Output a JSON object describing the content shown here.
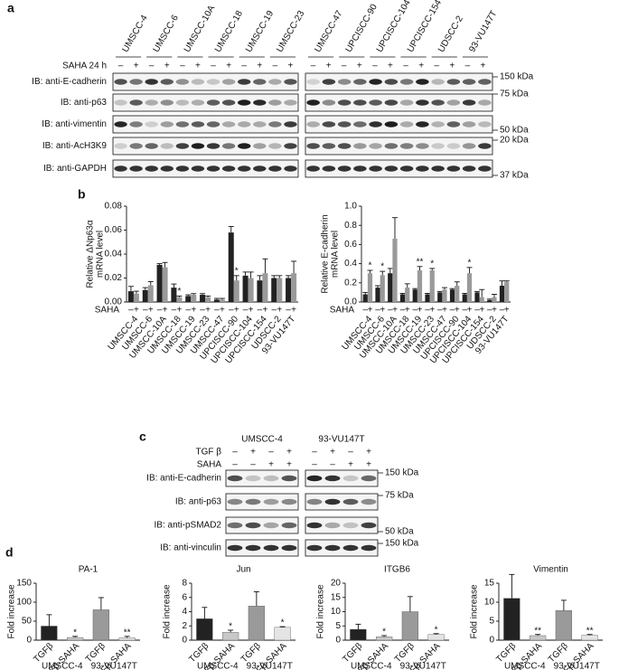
{
  "panel_labels": [
    "a",
    "b",
    "c",
    "d"
  ],
  "blot_a": {
    "treatment": "SAHA 24 h",
    "signs": [
      "–",
      "+"
    ],
    "cell_lines": [
      "UMSCC-4",
      "UMSCC-6",
      "UMSCC-10A",
      "UMSCC-18",
      "UMSCC-19",
      "UMSCC-23",
      "UMSCC-47",
      "UPCISCC-90",
      "UPCISCC-104",
      "UPCISCC-154",
      "UDSCC-2",
      "93-VU147T"
    ],
    "rows": [
      {
        "label": "IB: anti-E-cadherin",
        "marker": "150 kDa"
      },
      {
        "label": "IB: anti-p63",
        "marker": "75 kDa"
      },
      {
        "label": "IB: anti-vimentin",
        "marker": "50 kDa"
      },
      {
        "label": "IB: anti-AcH3K9",
        "marker": "20 kDa"
      },
      {
        "label": "IB: anti-GAPDH",
        "marker": "37 kDa"
      }
    ]
  },
  "blot_c": {
    "groups": [
      "UMSCC-4",
      "93-VU147T"
    ],
    "treatments": [
      {
        "name": "TGF β",
        "signs": [
          "–",
          "+",
          "–",
          "+"
        ]
      },
      {
        "name": "SAHA",
        "signs": [
          "–",
          "–",
          "+",
          "+"
        ]
      }
    ],
    "rows": [
      {
        "label": "IB: anti-E-cadherin",
        "marker": "150 kDa"
      },
      {
        "label": "IB: anti-p63",
        "marker": "75 kDa"
      },
      {
        "label": "IB: anti-pSMAD2",
        "marker": "50 kDa"
      },
      {
        "label": "IB: anti-vinculin",
        "marker": "150 kDa"
      }
    ]
  },
  "chart_data": [
    {
      "type": "grouped-bar",
      "ylabel": [
        "Relative ΔNp63α",
        "mRNA level"
      ],
      "treatment_label": "SAHA",
      "categories": [
        "UMSCC-4",
        "UMSCC-6",
        "UMSCC-10A",
        "UMSCC-18",
        "UMSCC-19",
        "UMSCC-23",
        "UMSCC-47",
        "UPCISCC-90",
        "UPCISCC-104",
        "UPCISCC-154",
        "UDSCC-2",
        "93-VU147T"
      ],
      "ylim": [
        0,
        0.08
      ],
      "yticks": [
        {
          "value": 0,
          "label": "0.00"
        },
        {
          "value": 0.02,
          "label": "0.02"
        },
        {
          "value": 0.04,
          "label": "0.04"
        },
        {
          "value": 0.06,
          "label": "0.06"
        },
        {
          "value": 0.08,
          "label": "0.08"
        }
      ],
      "series": [
        {
          "name": "–",
          "color": "#222222",
          "values": [
            0.009,
            0.01,
            0.031,
            0.012,
            0.005,
            0.006,
            0.002,
            0.058,
            0.022,
            0.018,
            0.02,
            0.02
          ],
          "errors": [
            0.004,
            0.002,
            0.001,
            0.003,
            0.001,
            0.001,
            0.001,
            0.005,
            0.003,
            0.004,
            0.002,
            0.002
          ]
        },
        {
          "name": "+",
          "color": "#9a9a9a",
          "values": [
            0.007,
            0.014,
            0.029,
            0.004,
            0.006,
            0.004,
            0.002,
            0.018,
            0.02,
            0.024,
            0.02,
            0.024
          ],
          "errors": [
            0.002,
            0.003,
            0.004,
            0.001,
            0.001,
            0.001,
            0.001,
            0.004,
            0.005,
            0.012,
            0.002,
            0.01
          ],
          "significance": [
            null,
            null,
            null,
            "*",
            null,
            null,
            null,
            "*",
            null,
            null,
            null,
            null
          ]
        }
      ]
    },
    {
      "type": "grouped-bar",
      "ylabel": [
        "Relative E-cadherin",
        "mRNA level"
      ],
      "treatment_label": "SAHA",
      "categories": [
        "UMSCC-4",
        "UMSCC-6",
        "UMSCC-10A",
        "UMSCC-18",
        "UMSCC-19",
        "UMSCC-23",
        "UMSCC-47",
        "UPCISCC-90",
        "UPCISCC-104",
        "UPCISCC-154",
        "UDSCC-2",
        "93-VU147T"
      ],
      "ylim": [
        0,
        1.0
      ],
      "yticks": [
        {
          "value": 0,
          "label": "0.0"
        },
        0.2,
        0.4,
        0.6,
        0.8,
        {
          "value": 1,
          "label": "1.0"
        }
      ],
      "series": [
        {
          "name": "–",
          "color": "#222222",
          "values": [
            0.08,
            0.15,
            0.3,
            0.08,
            0.13,
            0.08,
            0.1,
            0.13,
            0.08,
            0.1,
            0.02,
            0.17
          ],
          "errors": [
            0.02,
            0.02,
            0.05,
            0.01,
            0.01,
            0.01,
            0.01,
            0.01,
            0.01,
            0.01,
            0.01,
            0.05
          ]
        },
        {
          "name": "+",
          "color": "#9a9a9a",
          "values": [
            0.3,
            0.28,
            0.66,
            0.15,
            0.33,
            0.33,
            0.13,
            0.17,
            0.3,
            0.05,
            0.05,
            0.21
          ],
          "errors": [
            0.03,
            0.04,
            0.22,
            0.04,
            0.04,
            0.02,
            0.02,
            0.04,
            0.06,
            0.08,
            0.03,
            0.01
          ],
          "significance": [
            "*",
            "*",
            null,
            null,
            "**",
            "*",
            null,
            null,
            "*",
            null,
            null,
            null
          ]
        }
      ]
    },
    {
      "type": "bar",
      "title": "PA-1",
      "ylabel": "Fold increase",
      "categories": [
        "TGFβ",
        "TGFβ-SAHA",
        "TGFβ",
        "TGFβ-SAHA"
      ],
      "groups": [
        "UMSCC-4",
        "93-VU147T"
      ],
      "colors": [
        "#222222",
        "#c8c8c8",
        "#9a9a9a",
        "#e4e4e4"
      ],
      "ylim": [
        0,
        150
      ],
      "yticks": [
        0,
        50,
        100,
        150
      ],
      "values": [
        37,
        7,
        80,
        6
      ],
      "errors": [
        30,
        3,
        32,
        4
      ],
      "significance": [
        null,
        "*",
        null,
        "**"
      ]
    },
    {
      "type": "bar",
      "title": "Jun",
      "ylabel": "Fold increase",
      "categories": [
        "TGFβ",
        "TGFβ-SAHA",
        "TGFβ",
        "TGFβ-SAHA"
      ],
      "groups": [
        "UMSCC-4",
        "93-VU147T"
      ],
      "colors": [
        "#222222",
        "#c8c8c8",
        "#9a9a9a",
        "#e4e4e4"
      ],
      "ylim": [
        0,
        8
      ],
      "yticks": [
        0,
        2,
        4,
        6,
        8
      ],
      "values": [
        3.0,
        1.1,
        4.8,
        1.8
      ],
      "errors": [
        1.6,
        0.3,
        2.0,
        0.1
      ],
      "significance": [
        null,
        "*",
        null,
        "*"
      ]
    },
    {
      "type": "bar",
      "title": "ITGB6",
      "ylabel": "Fold increase",
      "categories": [
        "TGFβ",
        "TGFβ-SAHA",
        "TGFβ",
        "TGFβ-SAHA"
      ],
      "groups": [
        "UMSCC-4",
        "93-VU147T"
      ],
      "colors": [
        "#222222",
        "#c8c8c8",
        "#9a9a9a",
        "#e4e4e4"
      ],
      "ylim": [
        0,
        20
      ],
      "yticks": [
        0,
        5,
        10,
        15,
        20
      ],
      "values": [
        3.8,
        1.2,
        10,
        2
      ],
      "errors": [
        1.8,
        0.4,
        5.3,
        0.3
      ],
      "significance": [
        null,
        "*",
        null,
        "*"
      ]
    },
    {
      "type": "bar",
      "title": "Vimentin",
      "ylabel": "Fold increase",
      "categories": [
        "TGFβ",
        "TGFβ-SAHA",
        "TGFβ",
        "TGFβ-SAHA"
      ],
      "groups": [
        "UMSCC-4",
        "93-VU147T"
      ],
      "colors": [
        "#222222",
        "#c8c8c8",
        "#9a9a9a",
        "#e4e4e4"
      ],
      "ylim": [
        0,
        15
      ],
      "yticks": [
        0,
        5,
        10,
        15
      ],
      "values": [
        11,
        1.2,
        7.8,
        1.3
      ],
      "errors": [
        6.3,
        0.3,
        2.7,
        0.2
      ],
      "significance": [
        null,
        "**",
        null,
        "**"
      ]
    }
  ]
}
